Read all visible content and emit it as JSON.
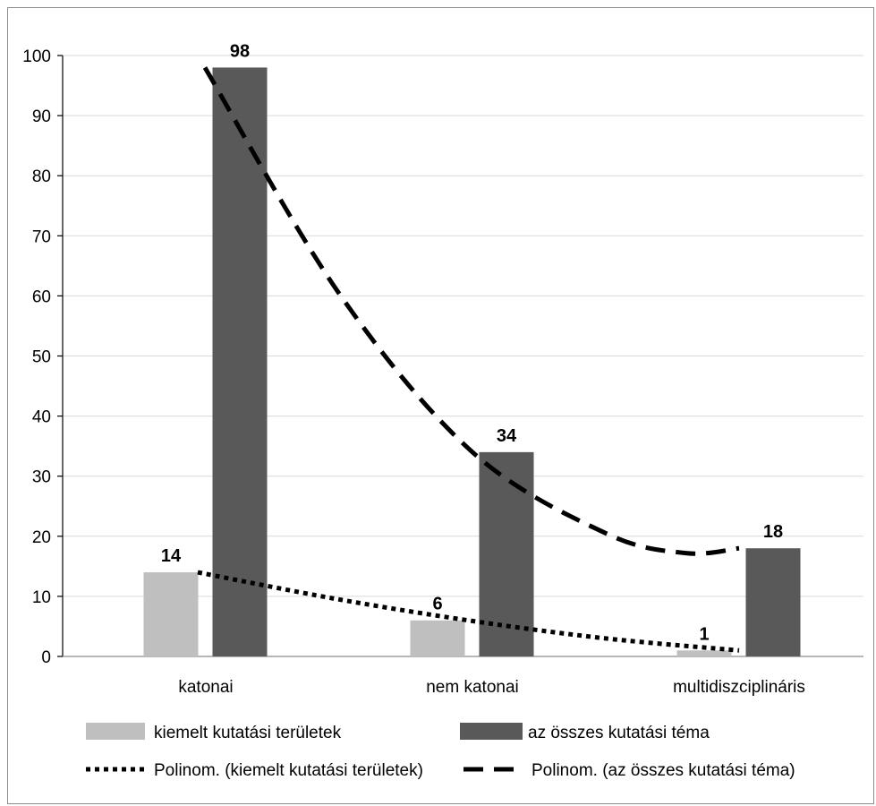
{
  "chart_data": {
    "type": "bar",
    "categories": [
      "katonai",
      "nem katonai",
      "multidiszciplináris"
    ],
    "series": [
      {
        "name": "kiemelt kutatási területek",
        "values": [
          14,
          6,
          1
        ],
        "color": "#bfbfbf"
      },
      {
        "name": "az összes kutatási téma",
        "values": [
          98,
          34,
          18
        ],
        "color": "#595959"
      }
    ],
    "trendlines": [
      {
        "name": "Polinom. (kiemelt kutatási területek)",
        "series": "kiemelt kutatási területek",
        "style": "dotted",
        "points": [
          [
            0,
            14
          ],
          [
            0.5,
            9.6
          ],
          [
            1,
            5.9
          ],
          [
            1.5,
            3
          ],
          [
            2,
            1
          ]
        ]
      },
      {
        "name": "Polinom. (az összes kutatási téma)",
        "series": "az összes kutatási téma",
        "style": "dashed",
        "points": [
          [
            0,
            98
          ],
          [
            0.5,
            60.5
          ],
          [
            1,
            34
          ],
          [
            1.5,
            20.5
          ],
          [
            1.8,
            17.2
          ],
          [
            2,
            18
          ]
        ]
      }
    ],
    "ylim": [
      0,
      100
    ],
    "yticks": [
      0,
      10,
      20,
      30,
      40,
      50,
      60,
      70,
      80,
      90,
      100
    ],
    "grid": true,
    "legend_position": "bottom",
    "title": "",
    "xlabel": "",
    "ylabel": ""
  }
}
